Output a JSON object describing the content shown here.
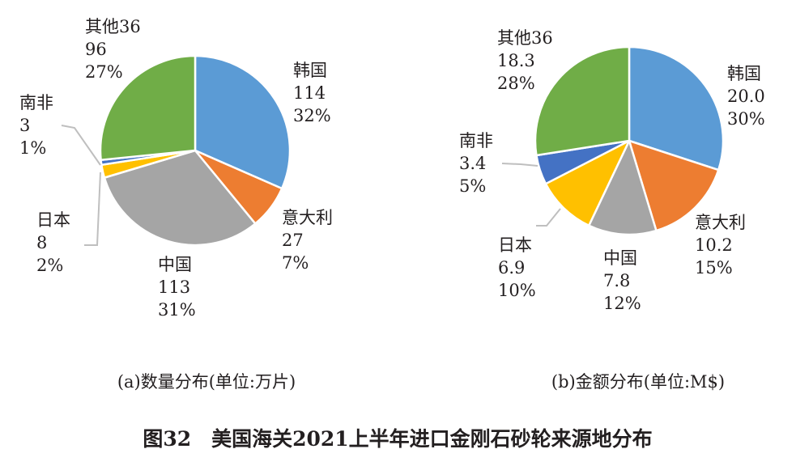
{
  "figure_title": "图32　美国海关2021上半年进口金刚石砂轮来源地分布",
  "chart_data": [
    {
      "type": "pie",
      "caption": "(a)数量分布(单位:万片)",
      "slices": [
        {
          "name": "韩国",
          "value": 114,
          "value_label": "114",
          "pct_label": "32%",
          "color": "#5b9bd5"
        },
        {
          "name": "意大利",
          "value": 27,
          "value_label": "27",
          "pct_label": "7%",
          "color": "#ed7d31"
        },
        {
          "name": "中国",
          "value": 113,
          "value_label": "113",
          "pct_label": "31%",
          "color": "#a5a5a5"
        },
        {
          "name": "日本",
          "value": 8,
          "value_label": "8",
          "pct_label": "2%",
          "color": "#ffc000"
        },
        {
          "name": "南非",
          "value": 3,
          "value_label": "3",
          "pct_label": "1%",
          "color": "#4472c4"
        },
        {
          "name": "其他36",
          "value": 96,
          "value_label": "96",
          "pct_label": "27%",
          "color": "#70ad47"
        }
      ]
    },
    {
      "type": "pie",
      "caption": "(b)金额分布(单位:M$)",
      "slices": [
        {
          "name": "韩国",
          "value": 20.0,
          "value_label": "20.0",
          "pct_label": "30%",
          "color": "#5b9bd5"
        },
        {
          "name": "意大利",
          "value": 10.2,
          "value_label": "10.2",
          "pct_label": "15%",
          "color": "#ed7d31"
        },
        {
          "name": "中国",
          "value": 7.8,
          "value_label": "7.8",
          "pct_label": "12%",
          "color": "#a5a5a5"
        },
        {
          "name": "日本",
          "value": 6.9,
          "value_label": "6.9",
          "pct_label": "10%",
          "color": "#ffc000"
        },
        {
          "name": "南非",
          "value": 3.4,
          "value_label": "3.4",
          "pct_label": "5%",
          "color": "#4472c4"
        },
        {
          "name": "其他36",
          "value": 18.3,
          "value_label": "18.3",
          "pct_label": "28%",
          "color": "#70ad47"
        }
      ]
    }
  ]
}
